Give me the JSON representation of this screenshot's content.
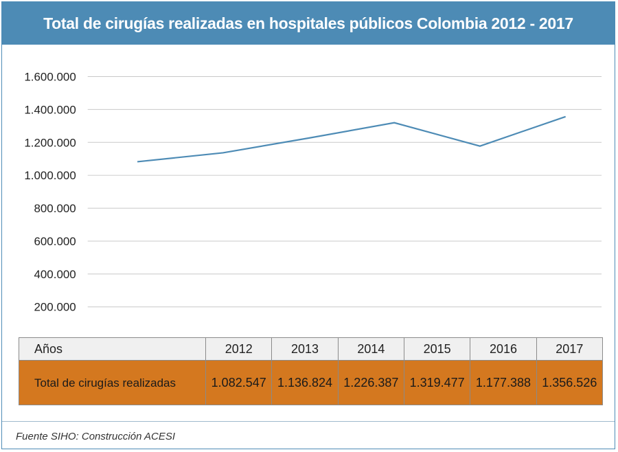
{
  "title": "Total de cirugías realizadas en hospitales públicos Colombia 2012 - 2017",
  "footer": "Fuente SIHO: Construcción ACESI",
  "table": {
    "header_label": "Años",
    "row_label": "Total de cirugías realizadas",
    "years": [
      "2012",
      "2013",
      "2014",
      "2015",
      "2016",
      "2017"
    ],
    "values": [
      "1.082.547",
      "1.136.824",
      "1.226.387",
      "1.319.477",
      "1.177.388",
      "1.356.526"
    ]
  },
  "chart_data": {
    "type": "line",
    "categories": [
      "2012",
      "2013",
      "2014",
      "2015",
      "2016",
      "2017"
    ],
    "series": [
      {
        "name": "Total de cirugías realizadas",
        "values": [
          1082547,
          1136824,
          1226387,
          1319477,
          1177388,
          1356526
        ]
      }
    ],
    "yticks": [
      "200.000",
      "400.000",
      "600.000",
      "800.000",
      "1.000.000",
      "1.200.000",
      "1.400.000",
      "1.600.000"
    ],
    "ylim": [
      0,
      1600000
    ],
    "grid": true,
    "line_color": "#4d8bb5"
  }
}
